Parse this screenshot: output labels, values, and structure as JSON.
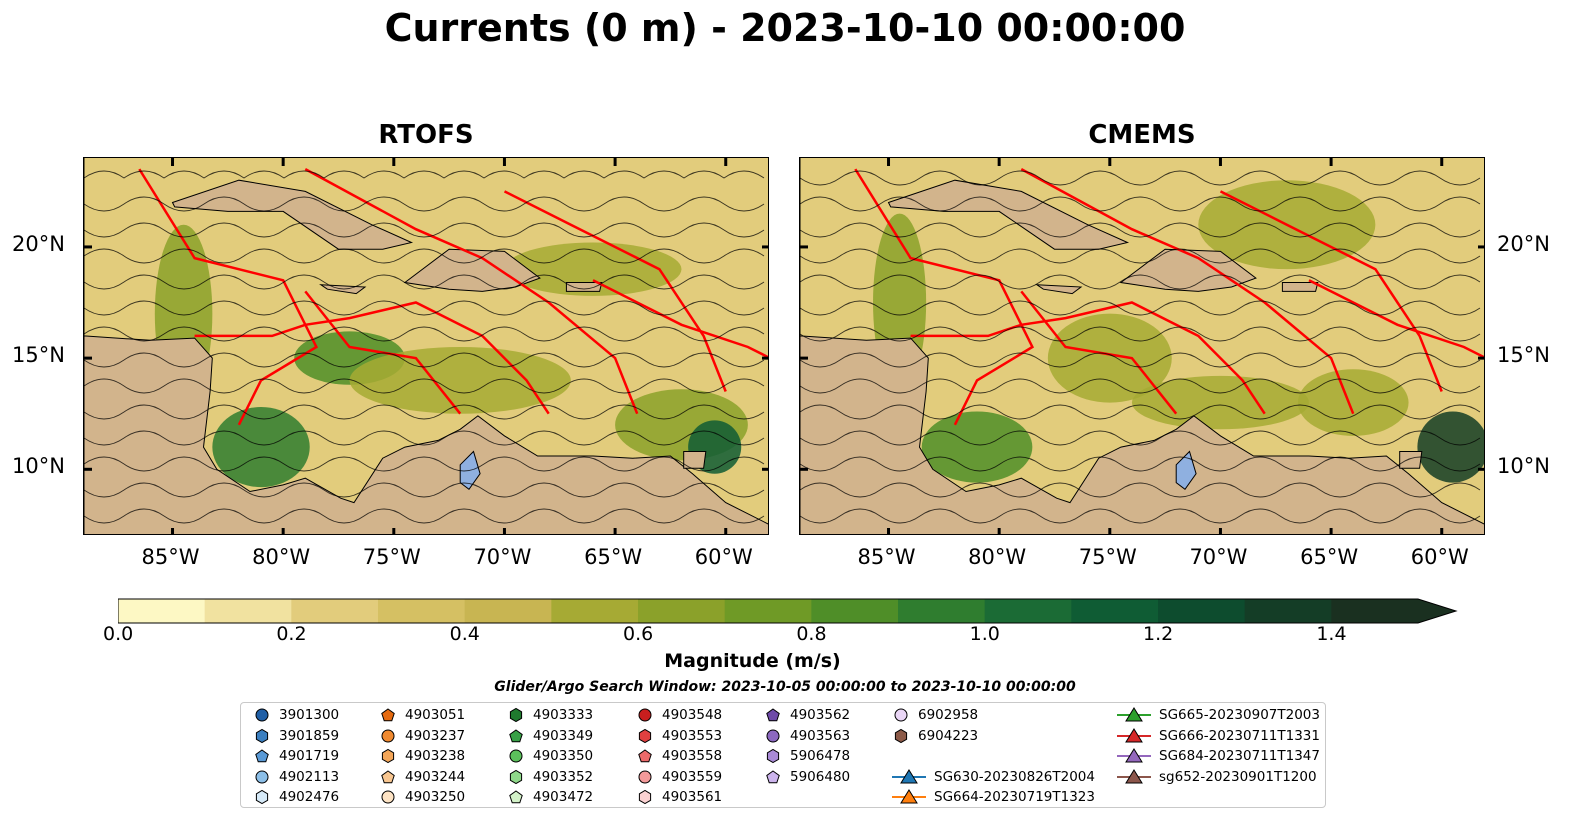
{
  "title": "Currents (0 m) - 2023-10-10 00:00:00",
  "panels": [
    {
      "name": "RTOFS"
    },
    {
      "name": "CMEMS"
    }
  ],
  "map": {
    "lon_range": [
      -89,
      -58
    ],
    "lat_range": [
      7,
      24
    ],
    "x_ticks": [
      "85°W",
      "80°W",
      "75°W",
      "70°W",
      "65°W",
      "60°W"
    ],
    "x_tick_values": [
      -85,
      -80,
      -75,
      -70,
      -65,
      -60
    ],
    "y_ticks": [
      "20°N",
      "15°N",
      "10°N"
    ],
    "y_tick_values": [
      20,
      15,
      10
    ],
    "land_color": "#d2b48c",
    "boundary_color": "#ff0000",
    "lake_color": "#8fb0e0"
  },
  "colorbar": {
    "label": "Magnitude (m/s)",
    "min": 0.0,
    "max": 1.5,
    "extend": "max",
    "tick_labels": [
      "0.0",
      "0.2",
      "0.4",
      "0.6",
      "0.8",
      "1.0",
      "1.2",
      "1.4"
    ],
    "tick_values": [
      0.0,
      0.2,
      0.4,
      0.6,
      0.8,
      1.0,
      1.2,
      1.4
    ],
    "colors": [
      "#fdf8c4",
      "#f1e2a0",
      "#e2cc7c",
      "#d5c063",
      "#c8b552",
      "#a6aa34",
      "#8ba12a",
      "#6f9a26",
      "#4f8e28",
      "#2f7d2f",
      "#1b6b35",
      "#0f5c34",
      "#0d4c2e",
      "#143d26",
      "#1a3020"
    ]
  },
  "search_window": "Glider/Argo Search Window: 2023-10-05 00:00:00 to 2023-10-10 00:00:00",
  "legend": [
    {
      "label": "3901300",
      "marker": "circle",
      "color": "#1f5fa6"
    },
    {
      "label": "3901859",
      "marker": "hexagon",
      "color": "#3b7fc0"
    },
    {
      "label": "4901719",
      "marker": "pentagon",
      "color": "#5a9ad6"
    },
    {
      "label": "4902113",
      "marker": "circle",
      "color": "#8cbfe8"
    },
    {
      "label": "4902476",
      "marker": "hexagon",
      "color": "#d6eaf8"
    },
    {
      "label": "4903051",
      "marker": "pentagon",
      "color": "#e56a10"
    },
    {
      "label": "4903237",
      "marker": "circle",
      "color": "#f08a30"
    },
    {
      "label": "4903238",
      "marker": "hexagon",
      "color": "#f4a658"
    },
    {
      "label": "4903244",
      "marker": "pentagon",
      "color": "#f8c690"
    },
    {
      "label": "4903250",
      "marker": "circle",
      "color": "#fde3c4"
    },
    {
      "label": "4903333",
      "marker": "hexagon",
      "color": "#1f7a2e"
    },
    {
      "label": "4903349",
      "marker": "pentagon",
      "color": "#38a046"
    },
    {
      "label": "4903350",
      "marker": "circle",
      "color": "#5cc05c"
    },
    {
      "label": "4903352",
      "marker": "hexagon",
      "color": "#8fd88a"
    },
    {
      "label": "4903472",
      "marker": "pentagon",
      "color": "#d3f2c8"
    },
    {
      "label": "4903548",
      "marker": "circle",
      "color": "#c81e1e"
    },
    {
      "label": "4903553",
      "marker": "hexagon",
      "color": "#e04040"
    },
    {
      "label": "4903558",
      "marker": "pentagon",
      "color": "#ec6a6a"
    },
    {
      "label": "4903559",
      "marker": "circle",
      "color": "#f39a9a"
    },
    {
      "label": "4903561",
      "marker": "hexagon",
      "color": "#fbd2d2"
    },
    {
      "label": "4903562",
      "marker": "pentagon",
      "color": "#6e4aa8"
    },
    {
      "label": "4903563",
      "marker": "circle",
      "color": "#8c68c0"
    },
    {
      "label": "5906478",
      "marker": "hexagon",
      "color": "#a98ad6"
    },
    {
      "label": "5906480",
      "marker": "pentagon",
      "color": "#ccb4ec"
    },
    {
      "label": "6902958",
      "marker": "circle",
      "color": "#ead6f6"
    },
    {
      "label": "6904223",
      "marker": "hexagon",
      "color": "#8c5a48"
    },
    {
      "label": "SG630-20230826T2004",
      "marker": "triangle-line",
      "color": "#1f77b4"
    },
    {
      "label": "SG664-20230719T1323",
      "marker": "triangle-line",
      "color": "#ff7f0e"
    },
    {
      "label": "SG665-20230907T2003",
      "marker": "triangle-line",
      "color": "#2ca02c"
    },
    {
      "label": "SG666-20230711T1331",
      "marker": "triangle-line",
      "color": "#d62728"
    },
    {
      "label": "SG684-20230711T1347",
      "marker": "triangle-line",
      "color": "#9467bd"
    },
    {
      "label": "sg652-20230901T1200",
      "marker": "triangle-line",
      "color": "#8c564b"
    }
  ]
}
